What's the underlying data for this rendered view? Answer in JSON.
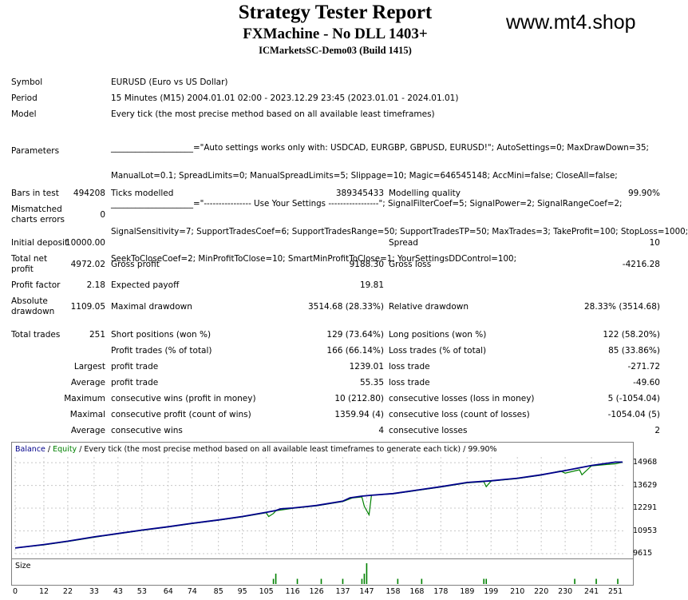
{
  "header": {
    "title": "Strategy Tester Report",
    "subtitle": "FXMachine - No DLL 1403+",
    "server": "ICMarketsSC-Demo03 (Build 1415)",
    "site": "www.mt4.shop"
  },
  "info": {
    "symbol_label": "Symbol",
    "symbol_value": "EURUSD (Euro vs US Dollar)",
    "period_label": "Period",
    "period_value": "15 Minutes (M15) 2004.01.01 02:00 - 2023.12.29 23:45 (2023.01.01 - 2024.01.01)",
    "model_label": "Model",
    "model_value": "Every tick (the most precise method based on all available least timeframes)",
    "parameters_label": "Parameters",
    "parameters_lines": [
      "____________________=\"Auto settings works only with: USDCAD, EURGBP, GBPUSD, EURUSD!\"; AutoSettings=0; MaxDrawDown=35;",
      "ManualLot=0.1; SpreadLimits=0; ManualSpreadLimits=5; Slippage=10; Magic=646545148; AccMini=false; CloseAll=false;",
      "____________________=\"---------------- Use Your Settings -----------------\"; SignalFilterCoef=5; SignalPower=2; SignalRangeCoef=2;",
      "SignalSensitivity=7; SupportTradesCoef=6; SupportTradesRange=50; SupportTradesTP=50; MaxTrades=3; TakeProfit=100; StopLoss=1000;",
      "SeekToCloseCoef=2; MinProfitToClose=10; SmartMinProfitToClose=1; YourSettingsDDControl=100;"
    ]
  },
  "stats": {
    "bars_label": "Bars in test",
    "bars_value": "494208",
    "ticks_label": "Ticks modelled",
    "ticks_value": "389345433",
    "quality_label": "Modelling quality",
    "quality_value": "99.90%",
    "mismatch_label_1": "Mismatched",
    "mismatch_label_2": "charts errors",
    "mismatch_value": "0",
    "deposit_label": "Initial deposit",
    "deposit_value": "10000.00",
    "spread_label": "Spread",
    "spread_value": "10",
    "netprofit_label_1": "Total net",
    "netprofit_label_2": "profit",
    "netprofit_value": "4972.02",
    "grossprofit_label": "Gross profit",
    "grossprofit_value": "9188.30",
    "grossloss_label": "Gross loss",
    "grossloss_value": "-4216.28",
    "pf_label": "Profit factor",
    "pf_value": "2.18",
    "payoff_label": "Expected payoff",
    "payoff_value": "19.81",
    "absdd_label_1": "Absolute",
    "absdd_label_2": "drawdown",
    "absdd_value": "1109.05",
    "maxdd_label": "Maximal drawdown",
    "maxdd_value": "3514.68 (28.33%)",
    "reldd_label": "Relative drawdown",
    "reldd_value": "28.33% (3514.68)",
    "trades_label": "Total trades",
    "trades_value": "251",
    "short_label": "Short positions (won %)",
    "short_value": "129 (73.64%)",
    "long_label": "Long positions (won %)",
    "long_value": "122 (58.20%)",
    "profittrades_label": "Profit trades (% of total)",
    "profittrades_value": "166 (66.14%)",
    "losstrades_label": "Loss trades (% of total)",
    "losstrades_value": "85 (33.86%)",
    "largest_label": "Largest",
    "largest_profit_label": "profit trade",
    "largest_profit_value": "1239.01",
    "largest_loss_label": "loss trade",
    "largest_loss_value": "-271.72",
    "average_label": "Average",
    "average_profit_label": "profit trade",
    "average_profit_value": "55.35",
    "average_loss_label": "loss trade",
    "average_loss_value": "-49.60",
    "maximum_label": "Maximum",
    "max_wins_label": "consecutive wins (profit in money)",
    "max_wins_value": "10 (212.80)",
    "max_losses_label": "consecutive losses (loss in money)",
    "max_losses_value": "5 (-1054.04)",
    "maximal_label": "Maximal",
    "maximal_profit_label": "consecutive profit (count of wins)",
    "maximal_profit_value": "1359.94 (4)",
    "maximal_loss_label": "consecutive loss (count of losses)",
    "maximal_loss_value": "-1054.04 (5)",
    "avg_cons_label": "Average",
    "avg_wins_label": "consecutive wins",
    "avg_wins_value": "4",
    "avg_losses_label": "consecutive losses",
    "avg_losses_value": "2"
  },
  "chart_data": {
    "type": "line",
    "legend": {
      "balance": "Balance",
      "sep1": " / ",
      "equity": "Equity",
      "rest": " / Every tick (the most precise method based on all available least timeframes to generate each tick) / 99.90%"
    },
    "colors": {
      "balance": "#00008b",
      "equity": "#008000",
      "grid": "#c8c8c8"
    },
    "grid": true,
    "ylim": [
      9615,
      15300
    ],
    "yticks": [
      "14968",
      "13629",
      "12291",
      "10953",
      "9615"
    ],
    "ytick_values": [
      14968,
      13629,
      12291,
      10953,
      9615
    ],
    "xlim": [
      0,
      255
    ],
    "xticks": [
      "0",
      "12",
      "22",
      "33",
      "43",
      "53",
      "64",
      "74",
      "85",
      "95",
      "105",
      "116",
      "126",
      "137",
      "147",
      "158",
      "168",
      "178",
      "189",
      "199",
      "210",
      "220",
      "230",
      "241",
      "251"
    ],
    "xtick_values": [
      0,
      12,
      22,
      33,
      43,
      53,
      64,
      74,
      85,
      95,
      105,
      116,
      126,
      137,
      147,
      158,
      168,
      178,
      189,
      199,
      210,
      220,
      230,
      241,
      251
    ],
    "balance": [
      [
        0,
        9950
      ],
      [
        12,
        10150
      ],
      [
        22,
        10350
      ],
      [
        33,
        10600
      ],
      [
        43,
        10800
      ],
      [
        53,
        11000
      ],
      [
        64,
        11200
      ],
      [
        74,
        11400
      ],
      [
        85,
        11600
      ],
      [
        95,
        11800
      ],
      [
        105,
        12050
      ],
      [
        109,
        12150
      ],
      [
        111,
        12250
      ],
      [
        116,
        12300
      ],
      [
        126,
        12450
      ],
      [
        137,
        12700
      ],
      [
        140,
        12900
      ],
      [
        145,
        13000
      ],
      [
        149,
        13050
      ],
      [
        158,
        13150
      ],
      [
        168,
        13350
      ],
      [
        178,
        13550
      ],
      [
        189,
        13800
      ],
      [
        199,
        13900
      ],
      [
        210,
        14050
      ],
      [
        220,
        14250
      ],
      [
        230,
        14500
      ],
      [
        241,
        14800
      ],
      [
        251,
        15000
      ],
      [
        254,
        15000
      ]
    ],
    "equity": [
      [
        0,
        9950
      ],
      [
        12,
        10130
      ],
      [
        22,
        10330
      ],
      [
        33,
        10580
      ],
      [
        43,
        10780
      ],
      [
        53,
        10980
      ],
      [
        64,
        11180
      ],
      [
        74,
        11380
      ],
      [
        85,
        11580
      ],
      [
        95,
        11780
      ],
      [
        105,
        12020
      ],
      [
        106,
        11800
      ],
      [
        108,
        11980
      ],
      [
        109,
        12140
      ],
      [
        116,
        12280
      ],
      [
        126,
        12430
      ],
      [
        137,
        12680
      ],
      [
        141,
        12890
      ],
      [
        145,
        12950
      ],
      [
        146,
        12400
      ],
      [
        148,
        11900
      ],
      [
        149,
        13050
      ],
      [
        158,
        13130
      ],
      [
        168,
        13330
      ],
      [
        178,
        13530
      ],
      [
        189,
        13780
      ],
      [
        196,
        13850
      ],
      [
        197,
        13550
      ],
      [
        199,
        13880
      ],
      [
        210,
        14030
      ],
      [
        220,
        14230
      ],
      [
        228,
        14480
      ],
      [
        230,
        14350
      ],
      [
        236,
        14550
      ],
      [
        237,
        14250
      ],
      [
        241,
        14780
      ],
      [
        251,
        14900
      ],
      [
        254,
        14990
      ]
    ],
    "size_label": "Size",
    "size_bars": [
      [
        108,
        1
      ],
      [
        109,
        2
      ],
      [
        118,
        1
      ],
      [
        128,
        1
      ],
      [
        137,
        1
      ],
      [
        145,
        1
      ],
      [
        146,
        2
      ],
      [
        147,
        4
      ],
      [
        160,
        1
      ],
      [
        170,
        1
      ],
      [
        196,
        1
      ],
      [
        197,
        1
      ],
      [
        234,
        1
      ],
      [
        243,
        1
      ],
      [
        252,
        1
      ]
    ]
  }
}
